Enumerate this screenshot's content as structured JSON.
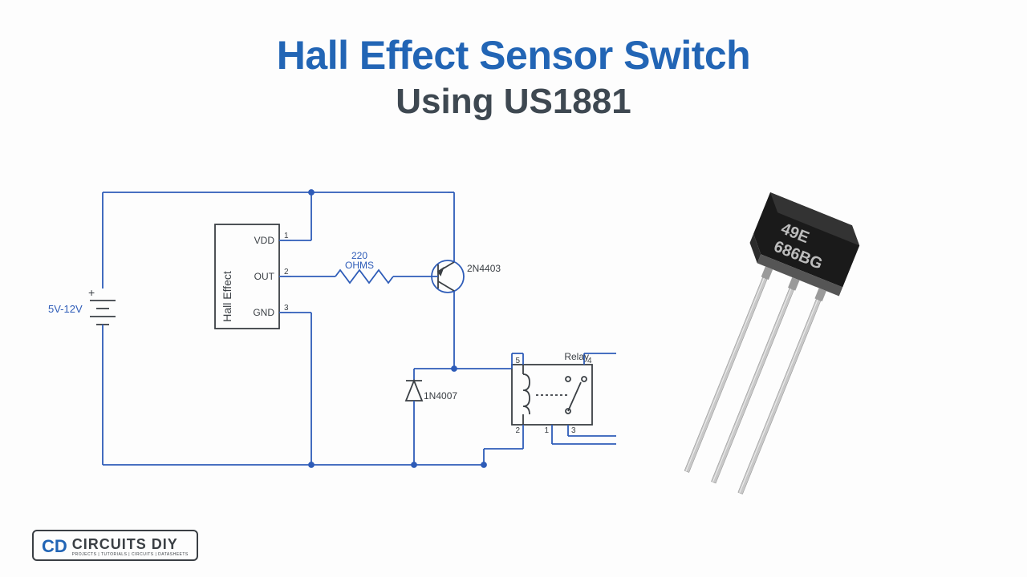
{
  "title": {
    "line1": "Hall Effect Sensor Switch",
    "line2": "Using US1881",
    "line1_color": "#2265b5",
    "line2_color": "#3e4851"
  },
  "schematic": {
    "type": "circuit-diagram",
    "wire_color": "#2e5cb8",
    "label_color": "#2e5cb8",
    "block_stroke": "#3a3f44",
    "power_label": "5V-12V",
    "ic": {
      "name": "Hall Effect",
      "pins": [
        {
          "num": "1",
          "label": "VDD"
        },
        {
          "num": "2",
          "label": "OUT"
        },
        {
          "num": "3",
          "label": "GND"
        }
      ]
    },
    "resistor": {
      "value": "220",
      "unit": "OHMS"
    },
    "transistor": "2N4403",
    "diode": "1N4007",
    "relay": {
      "label": "Relay",
      "pins": [
        "1",
        "2",
        "3",
        "4",
        "5"
      ]
    }
  },
  "component_photo": {
    "body_color": "#1a1a1a",
    "body_highlight": "#555555",
    "lead_color": "#c8c8c8",
    "lead_shadow": "#9a9a9a",
    "marking_line1": "49E",
    "marking_line2": "686BG",
    "marking_color": "#bcbcbc"
  },
  "logo": {
    "mark": "CD",
    "main": "CIRCUITS DIY",
    "sub": "PROJECTS | TUTORIALS | CIRCUITS | DATASHEETS"
  }
}
